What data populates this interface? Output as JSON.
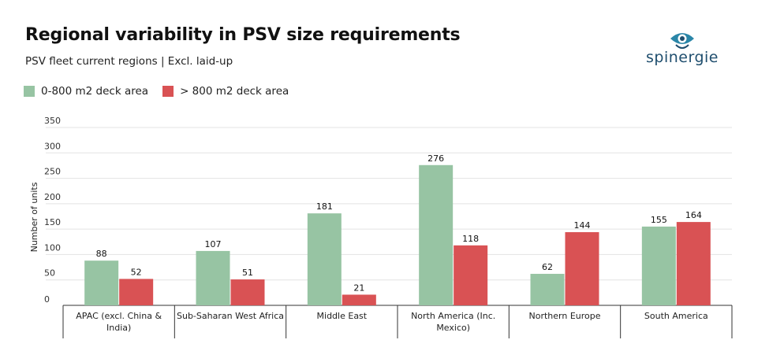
{
  "header": {
    "title": "Regional variability in PSV size requirements",
    "subtitle": "PSV fleet current regions | Excl. laid-up"
  },
  "brand": {
    "name": "spinergie",
    "color": "#1f4e6e",
    "accent": "#2a86a8"
  },
  "chart_data": {
    "type": "bar",
    "categories": [
      [
        "APAC (excl. China &",
        "India)"
      ],
      [
        "Sub-Saharan West Africa"
      ],
      [
        "Middle East"
      ],
      [
        "North America (Inc.",
        "Mexico)"
      ],
      [
        "Northern Europe"
      ],
      [
        "South America"
      ]
    ],
    "series": [
      {
        "name": "0-800 m2 deck area",
        "color": "#97c4a3",
        "values": [
          88,
          107,
          181,
          276,
          62,
          155
        ]
      },
      {
        "name": "> 800 m2 deck area",
        "color": "#d95254",
        "values": [
          52,
          51,
          21,
          118,
          144,
          164
        ]
      }
    ],
    "ylabel": "Number of units",
    "ylim": [
      0,
      350
    ],
    "yticks": [
      0,
      50,
      100,
      150,
      200,
      250,
      300,
      350
    ],
    "grid": true,
    "legend_position": "top-left"
  }
}
